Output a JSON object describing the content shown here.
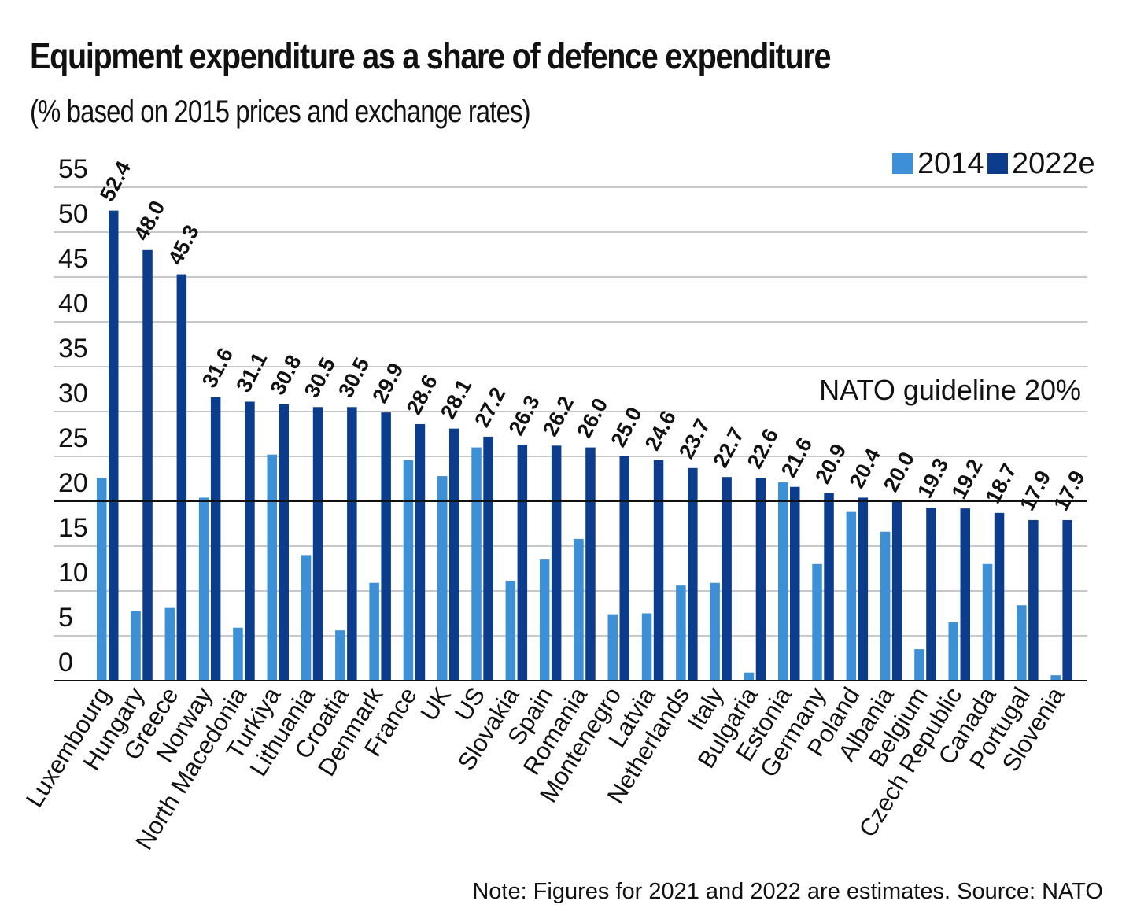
{
  "chart_data": {
    "type": "bar",
    "title": "Equipment expenditure as a share of defence expenditure",
    "subtitle": "(% based on 2015 prices and exchange rates)",
    "ylim": [
      0,
      55
    ],
    "yticks": [
      0,
      5,
      10,
      15,
      20,
      25,
      30,
      35,
      40,
      45,
      50,
      55
    ],
    "grid": true,
    "legend_position": "top-right",
    "categories": [
      "Luxembourg",
      "Hungary",
      "Greece",
      "Norway",
      "North Macedonia",
      "Turkiya",
      "Lithuania",
      "Croatia",
      "Denmark",
      "France",
      "UK",
      "US",
      "Slovakia",
      "Spain",
      "Romania",
      "Montenegro",
      "Latvia",
      "Netherlands",
      "Italy",
      "Bulgaria",
      "Estonia",
      "Germany",
      "Poland",
      "Albania",
      "Belgium",
      "Czech Republic",
      "Canada",
      "Portugal",
      "Slovenia"
    ],
    "series": [
      {
        "name": "2014",
        "color": "#3d8fd6",
        "values": [
          22.6,
          7.8,
          8.1,
          20.4,
          5.9,
          25.2,
          14.0,
          5.6,
          10.9,
          24.6,
          22.8,
          26.0,
          11.1,
          13.5,
          15.8,
          7.4,
          7.5,
          10.6,
          10.9,
          0.9,
          22.1,
          13.0,
          18.8,
          16.6,
          3.5,
          6.5,
          13.0,
          8.4,
          0.6
        ]
      },
      {
        "name": "2022e",
        "color": "#0c3c8c",
        "values": [
          52.4,
          48.0,
          45.3,
          31.6,
          31.1,
          30.8,
          30.5,
          30.5,
          29.9,
          28.6,
          28.1,
          27.2,
          26.3,
          26.2,
          26.0,
          25.0,
          24.6,
          23.7,
          22.7,
          22.6,
          21.6,
          20.9,
          20.4,
          20.0,
          19.3,
          19.2,
          18.7,
          17.9,
          17.9
        ]
      }
    ],
    "value_labels": [
      "52.4",
      "48.0",
      "45.3",
      "31.6",
      "31.1",
      "30.8",
      "30.5",
      "30.5",
      "29.9",
      "28.6",
      "28.1",
      "27.2",
      "26.3",
      "26.2",
      "26.0",
      "25.0",
      "24.6",
      "23.7",
      "22.7",
      "22.6",
      "21.6",
      "20.9",
      "20.4",
      "20.0",
      "19.3",
      "19.2",
      "18.7",
      "17.9",
      "17.9"
    ],
    "reference_line": {
      "value": 20,
      "label": "NATO guideline 20%"
    },
    "note": "Note: Figures for 2021 and 2022 are estimates. Source: NATO"
  }
}
